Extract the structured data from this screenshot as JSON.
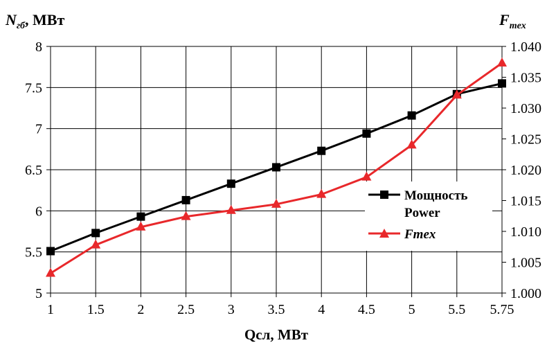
{
  "chart_data": {
    "type": "line",
    "title": "",
    "xlabel": "Qсл, МВт",
    "ylabel_left": {
      "main": "N",
      "sub": "гб",
      "rest": ", МВт"
    },
    "ylabel_right": {
      "main": "F",
      "sub": "mex"
    },
    "categories": [
      "1",
      "1.5",
      "2",
      "2.5",
      "3",
      "3.5",
      "4",
      "4.5",
      "5",
      "5.5",
      "5.75"
    ],
    "y_left_ticks": [
      "5",
      "5.5",
      "6",
      "6.5",
      "7",
      "7.5",
      "8"
    ],
    "y_right_ticks": [
      "1.000",
      "1.005",
      "1.010",
      "1.015",
      "1.020",
      "1.025",
      "1.030",
      "1.035",
      "1.040"
    ],
    "ylim_left": [
      5,
      8
    ],
    "ylim_right": [
      1.0,
      1.04
    ],
    "grid": true,
    "legend_position": "right-middle",
    "series": [
      {
        "name": "Мощность",
        "name_line2": "Power",
        "axis": "left",
        "color": "#000000",
        "marker": "square",
        "values": [
          5.51,
          5.73,
          5.93,
          6.13,
          6.33,
          6.53,
          6.73,
          6.94,
          7.16,
          7.42,
          7.55
        ]
      },
      {
        "name": "Fmex",
        "axis": "right",
        "color": "#e8282b",
        "marker": "triangle",
        "values": [
          1.0032,
          1.0078,
          1.0107,
          1.0124,
          1.0134,
          1.0144,
          1.016,
          1.0188,
          1.024,
          1.0321,
          1.0373
        ]
      }
    ]
  }
}
